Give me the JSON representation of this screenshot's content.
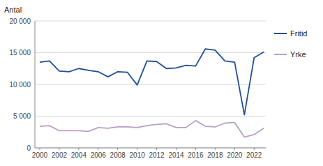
{
  "chart_data": {
    "type": "line",
    "y_label": "Antal",
    "x": [
      2000,
      2001,
      2002,
      2003,
      2004,
      2005,
      2006,
      2007,
      2008,
      2009,
      2010,
      2011,
      2012,
      2013,
      2014,
      2015,
      2016,
      2017,
      2018,
      2019,
      2020,
      2021,
      2022,
      2023
    ],
    "series": [
      {
        "name": "Fritid",
        "color": "#1F4E9B",
        "values": [
          13500,
          13700,
          12100,
          12000,
          12500,
          12200,
          12000,
          11200,
          12000,
          11900,
          9900,
          13700,
          13600,
          12500,
          12600,
          13000,
          12900,
          15600,
          15400,
          13700,
          13500,
          5200,
          14200,
          15100
        ]
      },
      {
        "name": "Yrke",
        "color": "#B8A0C8",
        "values": [
          3400,
          3500,
          2700,
          2700,
          2700,
          2600,
          3200,
          3100,
          3300,
          3300,
          3200,
          3500,
          3700,
          3800,
          3200,
          3200,
          4300,
          3400,
          3300,
          3900,
          4000,
          1700,
          2100,
          3100
        ]
      }
    ],
    "xlim": [
      1999.5,
      2023.2
    ],
    "xticks": [
      2000,
      2002,
      2004,
      2006,
      2008,
      2010,
      2012,
      2014,
      2016,
      2018,
      2020,
      2022
    ],
    "ylim": [
      0,
      20000
    ],
    "yticks": [
      0,
      {
        "value": 5000,
        "label": "5 000"
      },
      {
        "value": 10000,
        "label": "10 000"
      },
      {
        "value": 15000,
        "label": "15 000"
      },
      {
        "value": 20000,
        "label": "20 000"
      }
    ],
    "grid": true,
    "legend": "right"
  }
}
